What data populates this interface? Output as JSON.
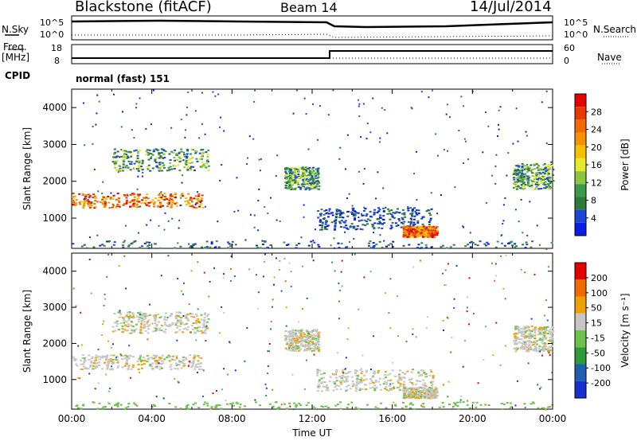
{
  "header": {
    "station": "Blackstone (fitACF)",
    "beam": "Beam 14",
    "date": "14/Jul/2014"
  },
  "top_panel": {
    "nsky_label": "N.Sky",
    "nsky_ticks": [
      "10^5",
      "10^0"
    ],
    "nsearch_label": "N.Search",
    "nsearch_ticks": [
      "10^5",
      "10^0"
    ],
    "freq_label": "Freq.",
    "freq_unit": "[MHz]",
    "freq_ticks": [
      "18",
      "8"
    ],
    "nave_label": "Nave",
    "nave_ticks": [
      "60",
      "0"
    ],
    "cpid_label": "CPID",
    "cpid_text": "normal (fast) 151"
  },
  "chart_data": [
    {
      "type": "heatmap",
      "name": "power",
      "ylabel": "Slant Range [km]",
      "yticks": [
        1000,
        2000,
        3000,
        4000
      ],
      "ylim": [
        180,
        4500
      ],
      "xlim": [
        0,
        24
      ],
      "colorbar": {
        "label": "Power [dB]",
        "ticks": [
          "28",
          "24",
          "20",
          "16",
          "12",
          "8",
          "4"
        ],
        "colors": [
          "#0b1ce6",
          "#1a47d6",
          "#2e7a3a",
          "#3c9a4b",
          "#8cc63f",
          "#e8e82a",
          "#f5c000",
          "#f59200",
          "#f06a00",
          "#e83a00",
          "#e60000"
        ]
      },
      "features": [
        {
          "t0": 0.0,
          "t1": 6.5,
          "r0": 1300,
          "r1": 1700,
          "level": "high"
        },
        {
          "t0": 2.0,
          "t1": 6.8,
          "r0": 2300,
          "r1": 2900,
          "level": "mid"
        },
        {
          "t0": 10.6,
          "t1": 12.3,
          "r0": 1800,
          "r1": 2400,
          "level": "mid"
        },
        {
          "t0": 12.2,
          "t1": 18.0,
          "r0": 700,
          "r1": 1300,
          "level": "low"
        },
        {
          "t0": 16.5,
          "t1": 18.2,
          "r0": 500,
          "r1": 800,
          "level": "high"
        },
        {
          "t0": 22.0,
          "t1": 24.0,
          "r0": 1800,
          "r1": 2500,
          "level": "mid"
        }
      ]
    },
    {
      "type": "heatmap",
      "name": "velocity",
      "ylabel": "Slant Range [km]",
      "yticks": [
        1000,
        2000,
        3000,
        4000
      ],
      "ylim": [
        180,
        4500
      ],
      "xlim": [
        0,
        24
      ],
      "xticks": [
        "00:00",
        "04:00",
        "08:00",
        "12:00",
        "16:00",
        "20:00",
        "00:00"
      ],
      "xlabel": "Time UT",
      "colorbar": {
        "label": "Velocity [m s⁻¹]",
        "ticks": [
          "200",
          "100",
          "50",
          "15",
          "-15",
          "-50",
          "-100",
          "-200"
        ],
        "colors": [
          "#1a2fd0",
          "#1f5fb0",
          "#2f9a3a",
          "#6cc24a",
          "#c6c6c6",
          "#f0a000",
          "#f06a00",
          "#e60000"
        ]
      }
    }
  ]
}
